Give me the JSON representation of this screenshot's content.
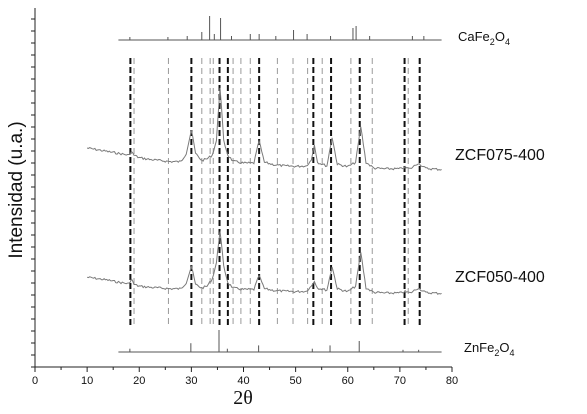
{
  "chart_data": {
    "type": "line",
    "title": "",
    "xlabel": "2θ",
    "ylabel": "Intensidad (u.a.)",
    "xlim": [
      0,
      80
    ],
    "ylim": [
      0,
      100
    ],
    "x_ticks": [
      0,
      10,
      20,
      30,
      40,
      50,
      60,
      70,
      80
    ],
    "x_tick_labels": [
      "0",
      "10",
      "20",
      "30",
      "40",
      "50",
      "60",
      "70",
      "80"
    ],
    "y_ticks_labeled": false,
    "grid": false,
    "series": [
      {
        "name": "ZCF075-400",
        "color": "#7a7a7a",
        "label_main": "ZCF075-400",
        "x": [
          10,
          12,
          14,
          16,
          18,
          18.5,
          19,
          20,
          22,
          24,
          26,
          28,
          29,
          30,
          30.8,
          32,
          33,
          34,
          34.8,
          35.5,
          36.2,
          37,
          38,
          40,
          42,
          43,
          44,
          46,
          48,
          50,
          52,
          53,
          53.6,
          54.2,
          56,
          57,
          58,
          60,
          61.5,
          62.5,
          63.5,
          65,
          67,
          70,
          71,
          72,
          73.5,
          75,
          78
        ],
        "y": [
          61,
          60.5,
          60,
          59.5,
          59,
          60,
          59,
          58.3,
          57.8,
          57.5,
          57.2,
          57.2,
          59.5,
          66,
          59.5,
          57.5,
          58,
          59,
          63,
          78,
          63,
          59,
          57.3,
          56.8,
          56.8,
          63,
          57,
          56.3,
          56,
          55.9,
          56,
          57.6,
          62,
          57,
          56,
          64,
          56.5,
          55.8,
          57,
          67,
          57,
          55.4,
          55.2,
          55.2,
          55.6,
          55.2,
          56.8,
          55.3,
          55
        ]
      },
      {
        "name": "ZCF050-400",
        "color": "#7a7a7a",
        "label_main": "ZCF050-400",
        "x": [
          10,
          12,
          14,
          16,
          18,
          18.5,
          19,
          20,
          22,
          24,
          26,
          28,
          29,
          30,
          30.8,
          32,
          33,
          34,
          34.8,
          35.5,
          36.2,
          37,
          38,
          40,
          42,
          43,
          44,
          46,
          48,
          50,
          52,
          53,
          53.6,
          54.2,
          56,
          57,
          58,
          60,
          61.5,
          62.5,
          63.5,
          65,
          67,
          70,
          71,
          72,
          73.5,
          75,
          78
        ],
        "y": [
          25,
          24.6,
          24.2,
          23.6,
          23.2,
          24.5,
          23,
          22.5,
          22.2,
          22,
          21.8,
          21.8,
          23.5,
          28,
          23,
          22,
          22.5,
          24.5,
          29,
          38,
          28,
          23.5,
          22,
          21.6,
          21.6,
          25.5,
          21.8,
          21.3,
          21.1,
          21,
          21.1,
          22.5,
          24,
          22,
          21.4,
          28,
          21.8,
          21,
          22.5,
          32,
          22,
          20.8,
          20.6,
          20.6,
          21,
          20.6,
          22,
          20.7,
          20.5
        ]
      },
      {
        "name": "CaFe2O4",
        "color": "#555555",
        "label_main": "CaFe",
        "label_sub": "2",
        "label_tail": "O",
        "label_sub2": "4",
        "sticks_x": [
          18.2,
          25.5,
          29.2,
          32.0,
          33.5,
          34.4,
          35.6,
          37.7,
          41.3,
          43.0,
          46.2,
          49.6,
          52.2,
          56.7,
          61.0,
          61.6,
          64.2,
          72.4,
          74.6
        ],
        "sticks_h": [
          1.5,
          1.5,
          2,
          4,
          12,
          3,
          11,
          2,
          3,
          3,
          2,
          5,
          3,
          2,
          6,
          7,
          2,
          2,
          2
        ]
      },
      {
        "name": "ZnFe2O4",
        "color": "#555555",
        "label_main": "ZnFe",
        "label_sub": "2",
        "label_tail": "O",
        "label_sub2": "4",
        "sticks_x": [
          18.2,
          29.9,
          35.3,
          36.9,
          42.9,
          53.2,
          56.6,
          62.2,
          70.6,
          73.6
        ],
        "sticks_h": [
          1.5,
          4,
          10,
          1.5,
          3,
          1.5,
          3,
          5,
          1,
          1
        ]
      }
    ],
    "reference_lines_dark": [
      18.3,
      30.0,
      35.4,
      37.0,
      43.0,
      53.4,
      56.8,
      62.3,
      70.9,
      73.8
    ],
    "reference_lines_light": [
      19.0,
      25.6,
      32.0,
      33.6,
      34.2,
      38.0,
      39.5,
      41.3,
      46.5,
      49.5,
      52.3,
      55.1,
      60.6,
      64.7,
      71.6
    ]
  }
}
